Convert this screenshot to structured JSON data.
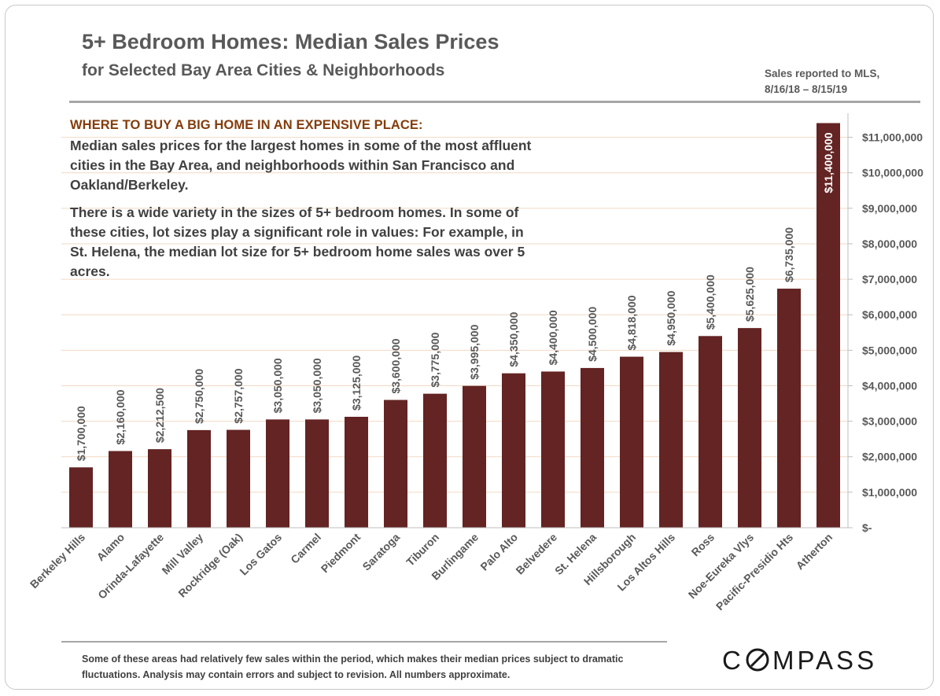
{
  "header": {
    "title": "5+ Bedroom Homes: Median Sales Prices",
    "subtitle": "for Selected Bay Area Cities & Neighborhoods",
    "period_line1": "Sales reported to MLS,",
    "period_line2": "8/16/18 – 8/15/19"
  },
  "annotation": {
    "headline": "WHERE TO BUY A BIG HOME IN AN EXPENSIVE PLACE:",
    "paragraph1": "Median sales prices for the largest homes in some of the most affluent cities in the Bay Area, and neighborhoods within San Francisco and Oakland/Berkeley.",
    "paragraph2": "There is a wide variety in the sizes of 5+ bedroom homes. In some of these cities, lot sizes play a significant role in values: For example, in St. Helena, the median lot size for 5+ bedroom home sales was over 5 acres."
  },
  "footnote": "Some of these areas had relatively few sales within the period, which makes their median prices subject to dramatic fluctuations. Analysis may contain errors and subject to revision. All numbers approximate.",
  "logo": {
    "text": "COMPASS"
  },
  "colors": {
    "bar": "#632423",
    "text": "#595959",
    "headline": "#843c0c",
    "grid": "#f2d9c4"
  },
  "chart_data": {
    "type": "bar",
    "title": "5+ Bedroom Homes: Median Sales Prices",
    "subtitle": "for Selected Bay Area Cities & Neighborhoods",
    "categories": [
      "Berkeley Hills",
      "Alamo",
      "Orinda-Lafayette",
      "Mill Valley",
      "Rockridge (Oak)",
      "Los Gatos",
      "Carmel",
      "Piedmont",
      "Saratoga",
      "Tiburon",
      "Burlingame",
      "Palo Alto",
      "Belvedere",
      "St. Helena",
      "Hillsborough",
      "Los Altos Hills",
      "Ross",
      "Noe-Eureka Vlys",
      "Pacific-Presidio Hts",
      "Atherton"
    ],
    "values": [
      1700000,
      2160000,
      2212500,
      2750000,
      2757000,
      3050000,
      3050000,
      3125000,
      3600000,
      3775000,
      3995000,
      4350000,
      4400000,
      4500000,
      4818000,
      4950000,
      5400000,
      5625000,
      6735000,
      11400000
    ],
    "data_labels": [
      "$1,700,000",
      "$2,160,000",
      "$2,212,500",
      "$2,750,000",
      "$2,757,000",
      "$3,050,000",
      "$3,050,000",
      "$3,125,000",
      "$3,600,000",
      "$3,775,000",
      "$3,995,000",
      "$4,350,000",
      "$4,400,000",
      "$4,500,000",
      "$4,818,000",
      "$4,950,000",
      "$5,400,000",
      "$5,625,000",
      "$6,735,000",
      "$11,400,000"
    ],
    "y_ticks": [
      0,
      1000000,
      2000000,
      3000000,
      4000000,
      5000000,
      6000000,
      7000000,
      8000000,
      9000000,
      10000000,
      11000000
    ],
    "y_tick_labels": [
      "$-",
      "$1,000,000",
      "$2,000,000",
      "$3,000,000",
      "$4,000,000",
      "$5,000,000",
      "$6,000,000",
      "$7,000,000",
      "$8,000,000",
      "$9,000,000",
      "$10,000,000",
      "$11,000,000"
    ],
    "ylim": [
      0,
      11500000
    ],
    "y_axis_position": "right",
    "grid": true,
    "xlabel": "",
    "ylabel": ""
  }
}
